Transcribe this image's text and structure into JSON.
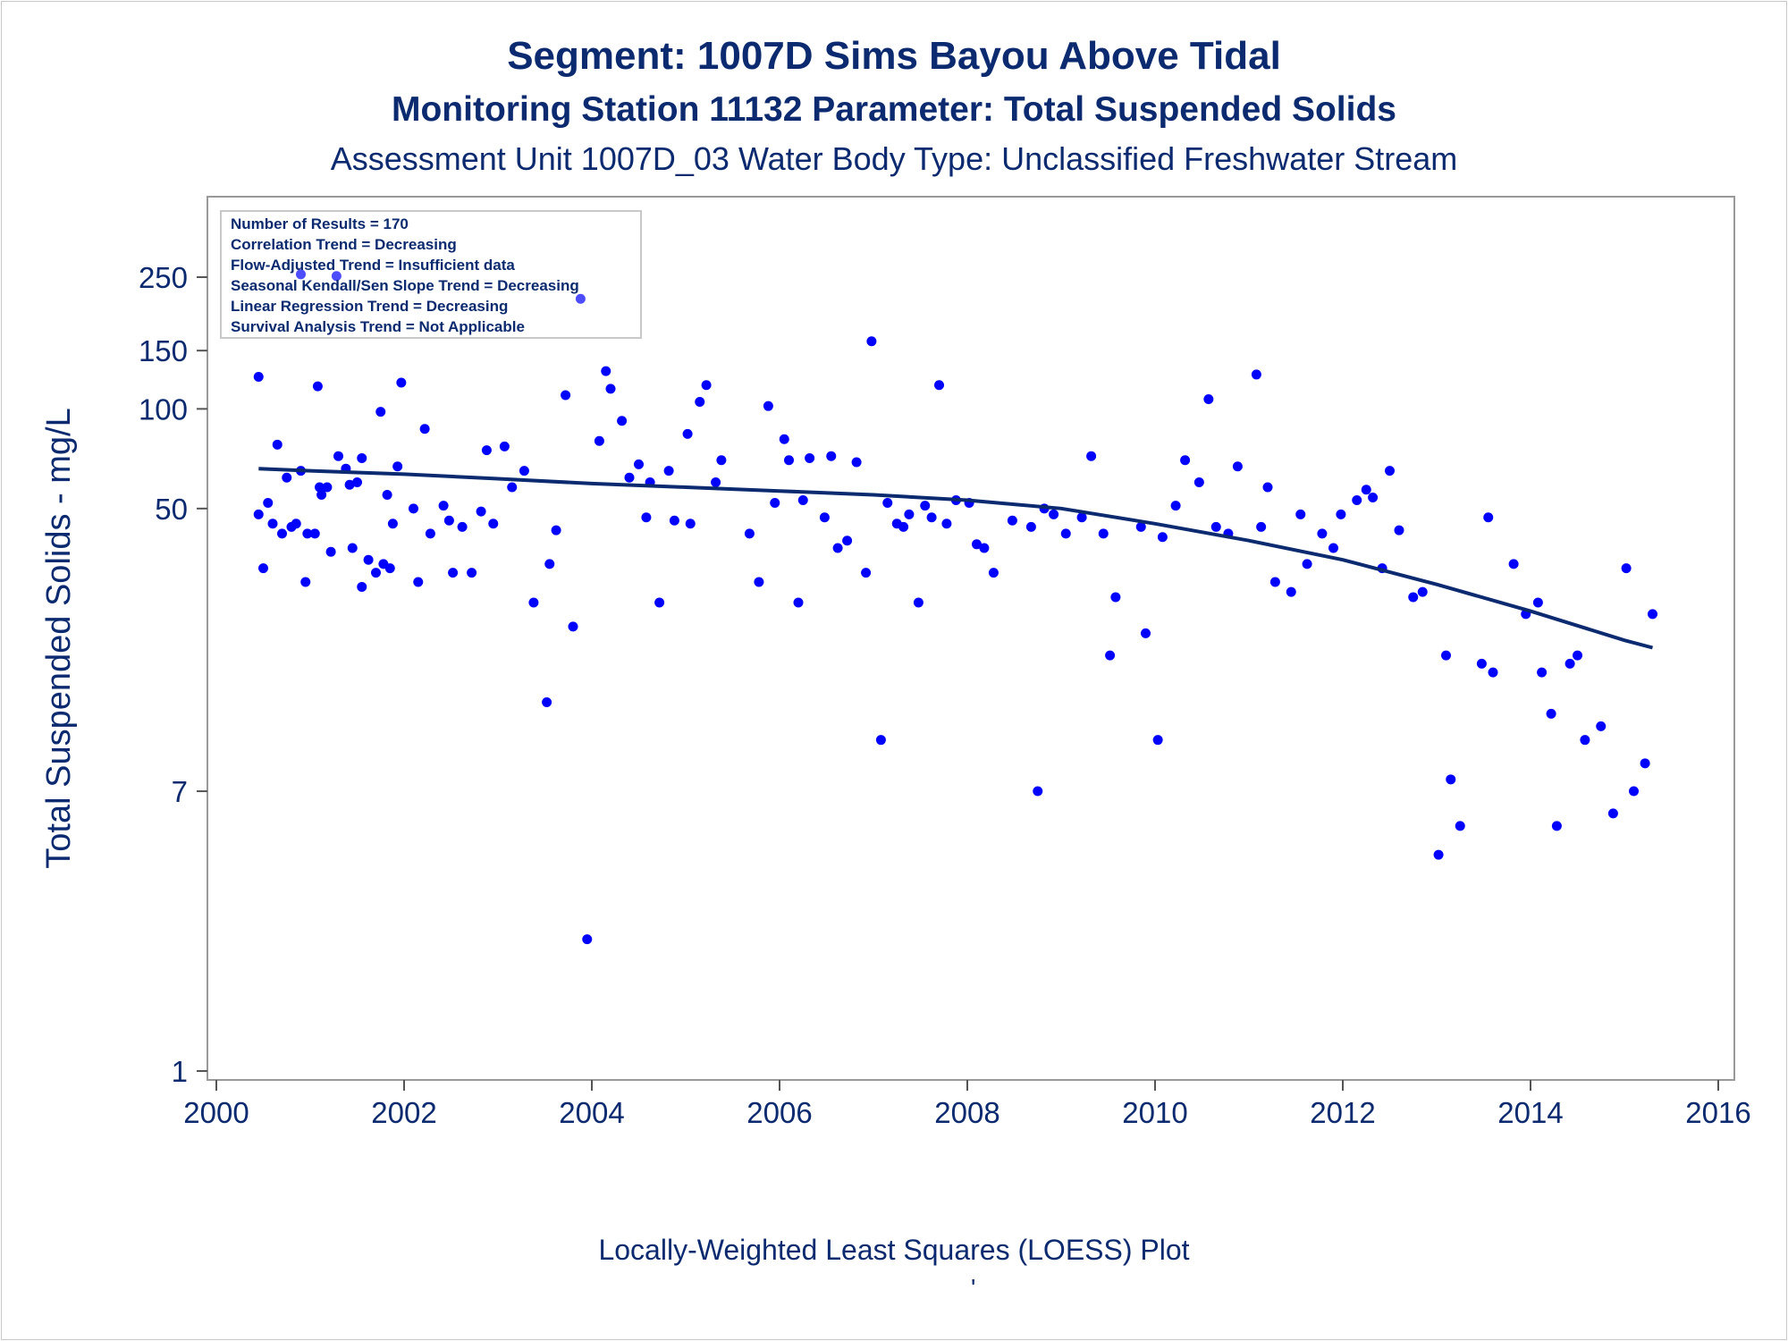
{
  "chart_data": {
    "type": "scatter",
    "title": "Segment: 1007D  Sims Bayou Above Tidal",
    "subtitle": "Monitoring Station 11132 Parameter: Total Suspended Solids",
    "subtitle2": "Assessment Unit 1007D_03   Water Body Type: Unclassified Freshwater Stream",
    "xlabel": "",
    "ylabel": "Total Suspended Solids - mg/L",
    "footnote": "Locally-Weighted Least Squares (LOESS) Plot",
    "footnote2": "'",
    "xlim": [
      2000,
      2016
    ],
    "ylim": [
      1,
      270
    ],
    "yscale": "log",
    "xticks": [
      "2000",
      "2002",
      "2004",
      "2006",
      "2008",
      "2010",
      "2012",
      "2014",
      "2016"
    ],
    "yticks": [
      "1",
      "7",
      "50",
      "100",
      "150",
      "250"
    ],
    "grid": false,
    "legend_position": "top-left",
    "stats": [
      "Number of Results = 170",
      "Correlation Trend = Decreasing",
      "Flow-Adjusted Trend = Insufficient data",
      "Seasonal Kendall/Sen Slope Trend = Decreasing",
      "Linear Regression Trend = Decreasing",
      "Survival Analysis Trend = Not Applicable"
    ],
    "series": [
      {
        "kind": "points",
        "color": "#0000ff",
        "points": [
          [
            2000.45,
            48
          ],
          [
            2000.45,
            125
          ],
          [
            2000.5,
            33
          ],
          [
            2000.55,
            52
          ],
          [
            2000.6,
            45
          ],
          [
            2000.65,
            78
          ],
          [
            2000.7,
            42
          ],
          [
            2000.75,
            62
          ],
          [
            2000.8,
            44
          ],
          [
            2000.85,
            45
          ],
          [
            2000.9,
            255
          ],
          [
            2000.9,
            65
          ],
          [
            2000.95,
            30
          ],
          [
            2000.97,
            42
          ],
          [
            2001.05,
            42
          ],
          [
            2001.08,
            117
          ],
          [
            2001.1,
            58
          ],
          [
            2001.12,
            55
          ],
          [
            2001.18,
            58
          ],
          [
            2001.22,
            37
          ],
          [
            2001.28,
            252
          ],
          [
            2001.3,
            72
          ],
          [
            2001.38,
            66
          ],
          [
            2001.42,
            59
          ],
          [
            2001.45,
            38
          ],
          [
            2001.5,
            60
          ],
          [
            2001.55,
            71
          ],
          [
            2001.55,
            29
          ],
          [
            2001.62,
            35
          ],
          [
            2001.7,
            32
          ],
          [
            2001.75,
            98
          ],
          [
            2001.78,
            34
          ],
          [
            2001.82,
            55
          ],
          [
            2001.85,
            33
          ],
          [
            2001.88,
            45
          ],
          [
            2001.93,
            67
          ],
          [
            2001.97,
            120
          ],
          [
            2002.1,
            50
          ],
          [
            2002.15,
            30
          ],
          [
            2002.22,
            87
          ],
          [
            2002.28,
            42
          ],
          [
            2002.42,
            51
          ],
          [
            2002.48,
            46
          ],
          [
            2002.52,
            32
          ],
          [
            2002.62,
            44
          ],
          [
            2002.72,
            32
          ],
          [
            2002.82,
            49
          ],
          [
            2002.88,
            75
          ],
          [
            2002.95,
            45
          ],
          [
            2003.07,
            77
          ],
          [
            2003.15,
            58
          ],
          [
            2003.28,
            65
          ],
          [
            2003.38,
            26
          ],
          [
            2003.52,
            13
          ],
          [
            2003.55,
            34
          ],
          [
            2003.62,
            43
          ],
          [
            2003.72,
            110
          ],
          [
            2003.8,
            22
          ],
          [
            2003.88,
            215
          ],
          [
            2003.95,
            2.5
          ],
          [
            2004.08,
            80
          ],
          [
            2004.15,
            130
          ],
          [
            2004.2,
            115
          ],
          [
            2004.32,
            92
          ],
          [
            2004.4,
            62
          ],
          [
            2004.5,
            68
          ],
          [
            2004.58,
            47
          ],
          [
            2004.62,
            60
          ],
          [
            2004.72,
            26
          ],
          [
            2004.82,
            65
          ],
          [
            2004.88,
            46
          ],
          [
            2005.02,
            84
          ],
          [
            2005.05,
            45
          ],
          [
            2005.15,
            105
          ],
          [
            2005.22,
            118
          ],
          [
            2005.32,
            60
          ],
          [
            2005.38,
            70
          ],
          [
            2005.68,
            42
          ],
          [
            2005.78,
            30
          ],
          [
            2005.88,
            102
          ],
          [
            2005.95,
            52
          ],
          [
            2006.05,
            81
          ],
          [
            2006.1,
            70
          ],
          [
            2006.2,
            26
          ],
          [
            2006.25,
            53
          ],
          [
            2006.32,
            71
          ],
          [
            2006.48,
            47
          ],
          [
            2006.55,
            72
          ],
          [
            2006.62,
            38
          ],
          [
            2006.72,
            40
          ],
          [
            2006.82,
            69
          ],
          [
            2006.92,
            32
          ],
          [
            2006.98,
            160
          ],
          [
            2007.08,
            10
          ],
          [
            2007.15,
            52
          ],
          [
            2007.25,
            45
          ],
          [
            2007.32,
            44
          ],
          [
            2007.38,
            48
          ],
          [
            2007.48,
            26
          ],
          [
            2007.55,
            51
          ],
          [
            2007.62,
            47
          ],
          [
            2007.7,
            118
          ],
          [
            2007.78,
            45
          ],
          [
            2007.88,
            53
          ],
          [
            2008.02,
            52
          ],
          [
            2008.1,
            39
          ],
          [
            2008.18,
            38
          ],
          [
            2008.28,
            32
          ],
          [
            2008.48,
            46
          ],
          [
            2008.68,
            44
          ],
          [
            2008.75,
            7
          ],
          [
            2008.82,
            50
          ],
          [
            2008.92,
            48
          ],
          [
            2009.05,
            42
          ],
          [
            2009.22,
            47
          ],
          [
            2009.32,
            72
          ],
          [
            2009.45,
            42
          ],
          [
            2009.52,
            18
          ],
          [
            2009.58,
            27
          ],
          [
            2009.85,
            44
          ],
          [
            2009.9,
            21
          ],
          [
            2010.03,
            10
          ],
          [
            2010.08,
            41
          ],
          [
            2010.22,
            51
          ],
          [
            2010.32,
            70
          ],
          [
            2010.47,
            60
          ],
          [
            2010.57,
            107
          ],
          [
            2010.65,
            44
          ],
          [
            2010.78,
            42
          ],
          [
            2010.88,
            67
          ],
          [
            2011.08,
            127
          ],
          [
            2011.13,
            44
          ],
          [
            2011.2,
            58
          ],
          [
            2011.28,
            30
          ],
          [
            2011.45,
            28
          ],
          [
            2011.55,
            48
          ],
          [
            2011.62,
            34
          ],
          [
            2011.78,
            42
          ],
          [
            2011.9,
            38
          ],
          [
            2011.98,
            48
          ],
          [
            2012.15,
            53
          ],
          [
            2012.25,
            57
          ],
          [
            2012.32,
            54
          ],
          [
            2012.42,
            33
          ],
          [
            2012.5,
            65
          ],
          [
            2012.6,
            43
          ],
          [
            2012.75,
            27
          ],
          [
            2012.85,
            28
          ],
          [
            2013.02,
            4.5
          ],
          [
            2013.1,
            18
          ],
          [
            2013.15,
            7.6
          ],
          [
            2013.25,
            5.5
          ],
          [
            2013.48,
            17
          ],
          [
            2013.55,
            47
          ],
          [
            2013.6,
            16
          ],
          [
            2013.82,
            34
          ],
          [
            2013.95,
            24
          ],
          [
            2014.08,
            26
          ],
          [
            2014.12,
            16
          ],
          [
            2014.22,
            12
          ],
          [
            2014.28,
            5.5
          ],
          [
            2014.42,
            17
          ],
          [
            2014.5,
            18
          ],
          [
            2014.58,
            10
          ],
          [
            2014.75,
            11
          ],
          [
            2014.88,
            6
          ],
          [
            2015.02,
            33
          ],
          [
            2015.1,
            7
          ],
          [
            2015.22,
            8.5
          ],
          [
            2015.3,
            24
          ]
        ]
      },
      {
        "kind": "line",
        "name": "LOESS",
        "color": "#0b2a6f",
        "points": [
          [
            2000.45,
            66
          ],
          [
            2001,
            65
          ],
          [
            2002,
            63.5
          ],
          [
            2003,
            61.5
          ],
          [
            2004,
            59.5
          ],
          [
            2005,
            58
          ],
          [
            2006,
            56.5
          ],
          [
            2007,
            55
          ],
          [
            2008,
            53
          ],
          [
            2009,
            50
          ],
          [
            2010,
            45
          ],
          [
            2011,
            40
          ],
          [
            2012,
            35
          ],
          [
            2013,
            29.5
          ],
          [
            2014,
            24.5
          ],
          [
            2015,
            20
          ],
          [
            2015.3,
            19
          ]
        ]
      }
    ]
  }
}
